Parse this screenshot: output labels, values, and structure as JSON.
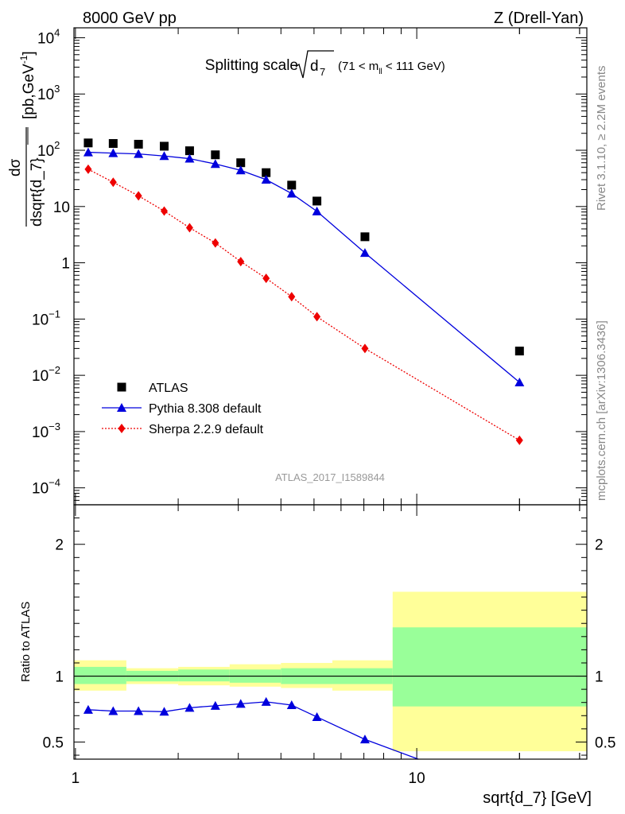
{
  "header": {
    "left": "8000 GeV pp",
    "right": "Z (Drell-Yan)"
  },
  "side_labels": {
    "rivet": "Rivet 3.1.10, ≥ 2.2M events",
    "mcplots": "mcplots.cern.ch [arXiv:1306.3436]"
  },
  "chart_data": [
    {
      "type": "scatter",
      "panel": "main",
      "title": "Splitting scale",
      "title_symbol": "d",
      "title_symbol_sub": "7",
      "title_range": "(71 < m",
      "title_range_sub": "ll",
      "title_range_end": " < 111 GeV)",
      "ylabel_num": "dσ",
      "ylabel_den": "dsqrt{d_7}",
      "ylabel_units": "[pb,GeV",
      "ylabel_units_sup": "-1",
      "ylabel_units_end": "]",
      "yscale": "log",
      "xscale": "log",
      "ylim": [
        5e-05,
        15000
      ],
      "xlim": [
        0.99,
        31.5
      ],
      "yticks": [
        {
          "mant": "10",
          "exp": "4",
          "v": 10000
        },
        {
          "mant": "10",
          "exp": "3",
          "v": 1000
        },
        {
          "mant": "10",
          "exp": "2",
          "v": 100
        },
        {
          "mant": "10",
          "exp": "",
          "v": 10
        },
        {
          "mant": "1",
          "exp": "",
          "v": 1
        },
        {
          "mant": "10",
          "exp": "−1",
          "v": 0.1
        },
        {
          "mant": "10",
          "exp": "−2",
          "v": 0.01
        },
        {
          "mant": "10",
          "exp": "−3",
          "v": 0.001
        },
        {
          "mant": "10",
          "exp": "−4",
          "v": 0.0001
        }
      ],
      "watermark": "ATLAS_2017_I1589844",
      "legend_position": "bottom-left",
      "series": [
        {
          "name": "ATLAS",
          "marker": "square",
          "color": "#000000",
          "x": [
            1.09,
            1.29,
            1.53,
            1.82,
            2.16,
            2.57,
            3.05,
            3.62,
            4.3,
            5.1,
            7.05,
            20.0
          ],
          "y": [
            135,
            132,
            128,
            118,
            98,
            83,
            60,
            40,
            24,
            12.5,
            2.9,
            0.027
          ]
        },
        {
          "name": "Pythia 8.308 default",
          "marker": "triangle",
          "color": "#0000dd",
          "line": "solid",
          "x": [
            1.09,
            1.29,
            1.53,
            1.82,
            2.16,
            2.57,
            3.05,
            3.62,
            4.3,
            5.1,
            7.05,
            20.0
          ],
          "y": [
            92,
            89,
            86,
            79,
            71,
            57,
            44,
            30,
            17,
            8.2,
            1.5,
            0.0075
          ]
        },
        {
          "name": "Sherpa 2.2.9 default",
          "marker": "diamond",
          "color": "#ee0000",
          "line": "dotted",
          "x": [
            1.09,
            1.29,
            1.53,
            1.82,
            2.16,
            2.57,
            3.05,
            3.62,
            4.3,
            5.1,
            7.05,
            20.0
          ],
          "y": [
            46,
            27,
            15.5,
            8.3,
            4.2,
            2.25,
            1.05,
            0.53,
            0.25,
            0.11,
            0.03,
            0.0007
          ]
        }
      ]
    },
    {
      "type": "line",
      "panel": "ratio",
      "ylabel": "Ratio to ATLAS",
      "xlabel": "sqrt{d_7} [GeV]",
      "yscale": "linear",
      "xscale": "log",
      "ylim": [
        0.37,
        2.3
      ],
      "xlim": [
        0.99,
        31.5
      ],
      "yticks": [
        0.5,
        1,
        2
      ],
      "xticks": [
        1,
        10
      ],
      "reference_line": 1.0,
      "bins": [
        {
          "lo": 0.99,
          "hi": 1.41,
          "stat_lo": 0.94,
          "stat_hi": 1.07,
          "tot_lo": 0.89,
          "tot_hi": 1.12
        },
        {
          "lo": 1.41,
          "hi": 2.0,
          "stat_lo": 0.96,
          "stat_hi": 1.04,
          "tot_lo": 0.94,
          "tot_hi": 1.06
        },
        {
          "lo": 2.0,
          "hi": 2.83,
          "stat_lo": 0.96,
          "stat_hi": 1.05,
          "tot_lo": 0.93,
          "tot_hi": 1.07
        },
        {
          "lo": 2.83,
          "hi": 4.0,
          "stat_lo": 0.95,
          "stat_hi": 1.05,
          "tot_lo": 0.92,
          "tot_hi": 1.09
        },
        {
          "lo": 4.0,
          "hi": 5.66,
          "stat_lo": 0.94,
          "stat_hi": 1.06,
          "tot_lo": 0.91,
          "tot_hi": 1.1
        },
        {
          "lo": 5.66,
          "hi": 8.5,
          "stat_lo": 0.94,
          "stat_hi": 1.06,
          "tot_lo": 0.89,
          "tot_hi": 1.12
        },
        {
          "lo": 8.5,
          "hi": 31.5,
          "stat_lo": 0.77,
          "stat_hi": 1.37,
          "tot_lo": 0.43,
          "tot_hi": 1.64
        }
      ],
      "series": [
        {
          "name": "Pythia 8.308 default",
          "marker": "triangle",
          "color": "#0000dd",
          "x": [
            1.09,
            1.29,
            1.53,
            1.82,
            2.16,
            2.57,
            3.05,
            3.62,
            4.3,
            5.1,
            7.05,
            10.6
          ],
          "y": [
            0.745,
            0.735,
            0.735,
            0.73,
            0.76,
            0.775,
            0.79,
            0.805,
            0.78,
            0.69,
            0.52,
            0.35
          ]
        }
      ],
      "band_colors": {
        "stat": "#99ff99",
        "total": "#ffff99"
      }
    }
  ]
}
